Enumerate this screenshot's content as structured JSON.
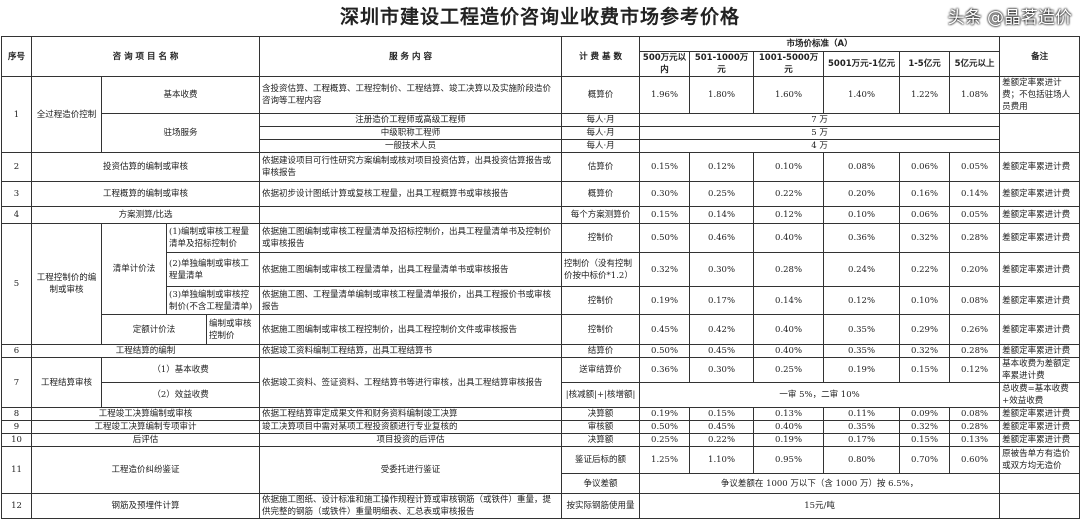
{
  "title": "深圳市建设工程造价咨询业收费市场参考价格",
  "header": {
    "no": "序号",
    "name": "咨 询 项 目 名 称",
    "service": "服 务 内 容",
    "base": "计 费 基 数",
    "market": "市场价标准（A）",
    "ranges": [
      "500万元以内",
      "501-1000万元",
      "1001-5000万元",
      "5001万元-1亿元",
      "1-5亿元",
      "5亿元以上"
    ],
    "remark": "备注"
  },
  "r1": {
    "no": "1",
    "name": "全过程造价控制",
    "sub1": "基本收费",
    "service1": "含投资估算、工程概算、工程控制价、工程结算、竣工决算以及实施阶段造价咨询等工程内容",
    "base1": "概算价",
    "v": [
      "1.96%",
      "1.80%",
      "1.60%",
      "1.40%",
      "1.22%",
      "1.08%"
    ],
    "remark1": "差额定率累进计费；不包括驻场人员费用",
    "sub2": "驻场服务",
    "staff": [
      {
        "role": "注册造价工程师或高级工程师",
        "base": "每人·月",
        "price": "7 万"
      },
      {
        "role": "中级职称工程师",
        "base": "每人·月",
        "price": "5 万"
      },
      {
        "role": "一般技术人员",
        "base": "每人·月",
        "price": "4 万"
      }
    ]
  },
  "r2": {
    "no": "2",
    "name": "投资估算的编制或审核",
    "service": "依据建设项目可行性研究方案编制或核对项目投资估算，出具投资估算报告或审核报告",
    "base": "估算价",
    "v": [
      "0.15%",
      "0.12%",
      "0.10%",
      "0.08%",
      "0.06%",
      "0.05%"
    ],
    "remark": "差额定率累进计费"
  },
  "r3": {
    "no": "3",
    "name": "工程概算的编制或审核",
    "service": "依据初步设计图纸计算或复核工程量，出具工程概算书或审核报告",
    "base": "概算价",
    "v": [
      "0.30%",
      "0.25%",
      "0.22%",
      "0.20%",
      "0.16%",
      "0.14%"
    ],
    "remark": "差额定率累进计费"
  },
  "r4": {
    "no": "4",
    "name": "方案测算/比选",
    "service": "",
    "base": "每个方案测算价",
    "v": [
      "0.15%",
      "0.14%",
      "0.12%",
      "0.10%",
      "0.06%",
      "0.05%"
    ],
    "remark": "差额定率累进计费"
  },
  "r5": {
    "no": "5",
    "name": "工程控制价的编制或审核",
    "method1": "清单计价法",
    "method2": "定额计价法",
    "items": [
      {
        "sub": "(1)编制或审核工程量清单及招标控制价",
        "service": "依据施工图编制或审核工程量清单及招标控制价，出具工程量清单书及控制价或审核报告",
        "base": "控制价",
        "v": [
          "0.50%",
          "0.46%",
          "0.40%",
          "0.36%",
          "0.32%",
          "0.28%"
        ],
        "remark": "差额定率累进计费"
      },
      {
        "sub": "(2)单独编制或审核工程量清单",
        "service": "依据施工图编制或审核工程量清单，出具工程量清单书或审核报告",
        "base": "控制价（没有控制价按中标价*1.2）",
        "v": [
          "0.32%",
          "0.30%",
          "0.28%",
          "0.24%",
          "0.22%",
          "0.20%"
        ],
        "remark": "差额定率累进计费"
      },
      {
        "sub": "(3)单独编制或审核控制价(不含工程量清单)",
        "service": "依据施工图、工程量清单编制或审核工程量清单报价，出具工程报价书或审核报告",
        "base": "控制价",
        "v": [
          "0.19%",
          "0.17%",
          "0.14%",
          "0.12%",
          "0.10%",
          "0.08%"
        ],
        "remark": "差额定率累进计费"
      },
      {
        "sub": "编制或审核控制价",
        "service": "依据施工图编制或审核工程控制价，出具工程控制价文件或审核报告",
        "base": "控制价",
        "v": [
          "0.45%",
          "0.42%",
          "0.40%",
          "0.35%",
          "0.29%",
          "0.26%"
        ],
        "remark": "差额定率累进计费"
      }
    ]
  },
  "r6": {
    "no": "6",
    "name": "工程结算的编制",
    "service": "依据竣工资料编制工程结算，出具工程结算书",
    "base": "结算价",
    "v": [
      "0.50%",
      "0.45%",
      "0.40%",
      "0.35%",
      "0.32%",
      "0.28%"
    ],
    "remark": "差额定率累进计费"
  },
  "r7": {
    "no": "7",
    "name": "工程结算审核",
    "sub1": "（1）基本收费",
    "sub2": "（2）效益收费",
    "service": "依据竣工资料、签证资料、工程结算书等进行审核，出具工程结算审核报告",
    "base1": "送审结算价",
    "v": [
      "0.36%",
      "0.30%",
      "0.25%",
      "0.19%",
      "0.15%",
      "0.12%"
    ],
    "remark1": "基本收费为差额定率累进计费",
    "base2": "|核减额|+|核增额|",
    "price2": "一审 5%，二审 10%",
    "remark2": "总收费=基本收费+效益收费"
  },
  "r8": {
    "no": "8",
    "name": "工程竣工决算编制或审核",
    "service": "依据工程结算审定成果文件和财务资料编制竣工决算",
    "base": "决算额",
    "v": [
      "0.19%",
      "0.15%",
      "0.13%",
      "0.11%",
      "0.09%",
      "0.08%"
    ],
    "remark": "差额定率累进计费"
  },
  "r9": {
    "no": "9",
    "name": "工程竣工决算编制专项审计",
    "service": "竣工决算项目中需对某项工程投资额进行专业复核的",
    "base": "审核额",
    "v": [
      "0.50%",
      "0.45%",
      "0.40%",
      "0.35%",
      "0.32%",
      "0.28%"
    ],
    "remark": "差额定率累进计费"
  },
  "r10": {
    "no": "10",
    "name": "后评估",
    "service": "项目投资的后评估",
    "base": "决算额",
    "v": [
      "0.25%",
      "0.22%",
      "0.19%",
      "0.17%",
      "0.15%",
      "0.13%"
    ],
    "remark": "差额定率累进计费"
  },
  "r11": {
    "no": "11",
    "name": "工程造价纠纷鉴证",
    "service": "受委托进行鉴证",
    "base1": "鉴证后标的额",
    "v": [
      "1.25%",
      "1.10%",
      "0.95%",
      "0.80%",
      "0.70%",
      "0.60%"
    ],
    "remark1": "原被告单方有造价或双方均无造价",
    "base2": "争议差额",
    "price2": "争议差额在 1000 万以下（含 1000 万）按 6.5%，"
  },
  "r12": {
    "no": "12",
    "name": "钢筋及预埋件计算",
    "service": "依据施工图纸、设计标准和施工操作规程计算或审核钢筋（或铁件）重量，提供完整的钢筋（或铁件）重量明细表、汇总表或审核报告",
    "base": "按实际钢筋使用量",
    "price": "15元/吨"
  },
  "watermark": "头条 @晶茗造价"
}
